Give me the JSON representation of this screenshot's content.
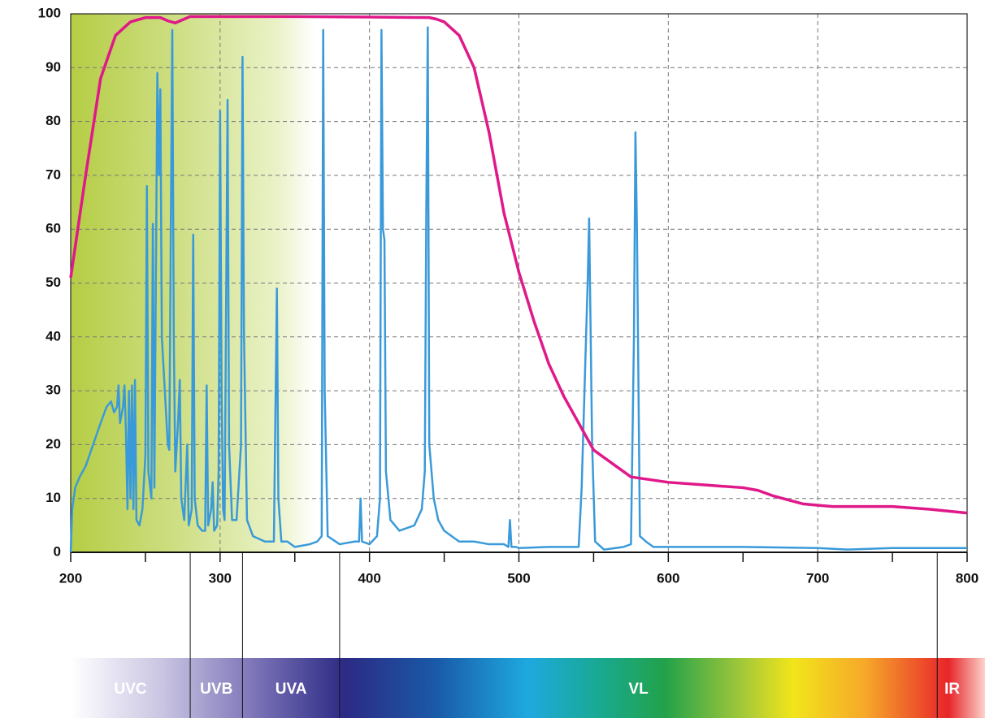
{
  "chart_data": {
    "type": "line",
    "xlim": [
      200,
      800
    ],
    "ylim": [
      0,
      100
    ],
    "xticks": [
      200,
      300,
      400,
      500,
      600,
      700,
      800
    ],
    "yticks": [
      0,
      10,
      20,
      30,
      40,
      50,
      60,
      70,
      80,
      90,
      100
    ],
    "grid": true,
    "series": [
      {
        "color": "#e0198a",
        "x": [
          200,
          210,
          220,
          230,
          240,
          250,
          260,
          265,
          270,
          275,
          280,
          300,
          350,
          400,
          440,
          445,
          450,
          460,
          470,
          480,
          490,
          500,
          510,
          520,
          530,
          540,
          550,
          560,
          575,
          600,
          625,
          650,
          660,
          670,
          690,
          710,
          750,
          775,
          800
        ],
        "values": [
          51,
          70,
          88,
          96,
          98.5,
          99.3,
          99.3,
          98.7,
          98.3,
          98.9,
          99.5,
          99.5,
          99.5,
          99.4,
          99.3,
          99,
          98.5,
          96,
          90,
          78,
          63,
          52,
          43,
          35,
          29,
          24,
          19,
          17,
          14,
          13,
          12.5,
          12,
          11.5,
          10.5,
          9,
          8.5,
          8.5,
          8,
          7.3
        ]
      },
      {
        "color": "#3a9ad9",
        "x": [
          200,
          201,
          203,
          206,
          210,
          215,
          220,
          224,
          227,
          229,
          231,
          232,
          233,
          235,
          236,
          237,
          238,
          239,
          240,
          241,
          242,
          243,
          244,
          246,
          248,
          250,
          251,
          252,
          254,
          255,
          256,
          258,
          259,
          260,
          261,
          263,
          265,
          266,
          267,
          268,
          269,
          270,
          272,
          273,
          274,
          276,
          278,
          279,
          281,
          282,
          283,
          285,
          288,
          290,
          291,
          292,
          294,
          295,
          296,
          298,
          299,
          300,
          301,
          302,
          303,
          305,
          306,
          308,
          311,
          314,
          315,
          316,
          318,
          322,
          330,
          336,
          338,
          339,
          341,
          345,
          350,
          360,
          365,
          368,
          369,
          370,
          372,
          380,
          390,
          393,
          394,
          395,
          400,
          405,
          407,
          408,
          409,
          410,
          411,
          414,
          420,
          430,
          435,
          437,
          438,
          439,
          440,
          443,
          446,
          450,
          460,
          470,
          480,
          490,
          493,
          494,
          495,
          498,
          500,
          520,
          540,
          542,
          546,
          547,
          549,
          551,
          557,
          570,
          575,
          577,
          578,
          579,
          581,
          585,
          590,
          600,
          650,
          700,
          720,
          750,
          800
        ],
        "values": [
          0,
          8,
          12,
          14,
          16,
          20,
          24,
          27,
          28,
          26,
          27,
          31,
          24,
          27,
          31,
          22,
          8,
          30,
          10,
          31,
          8,
          32,
          6,
          5,
          8,
          18,
          68,
          15,
          10,
          61,
          12,
          89,
          70,
          86,
          40,
          30,
          20,
          19,
          60,
          97,
          40,
          15,
          25,
          32,
          10,
          6,
          20,
          5,
          8,
          59,
          10,
          5,
          4,
          4,
          31,
          5,
          8,
          13,
          4,
          5,
          15,
          82,
          30,
          8,
          6,
          84,
          20,
          6,
          6,
          20,
          92,
          40,
          6,
          3,
          2,
          2,
          49,
          10,
          2,
          2,
          1,
          1.5,
          2,
          3,
          97,
          30,
          3,
          1.5,
          2,
          2,
          10,
          2,
          1.5,
          3,
          10,
          97,
          60,
          58,
          15,
          6,
          4,
          5,
          8,
          15,
          63,
          97.5,
          20,
          10,
          6,
          4,
          2,
          2,
          1.5,
          1.5,
          1,
          6,
          1,
          1,
          0.8,
          1,
          1,
          12,
          50,
          62,
          20,
          2,
          0.5,
          1,
          1.5,
          40,
          78,
          60,
          3,
          2,
          1,
          1,
          1,
          0.8,
          0.5,
          0.8,
          0.8
        ]
      }
    ],
    "regions": [
      "UVC",
      "UVB",
      "UVA",
      "VL",
      "IR"
    ],
    "region_boundaries": [
      280,
      315,
      380,
      780
    ]
  }
}
